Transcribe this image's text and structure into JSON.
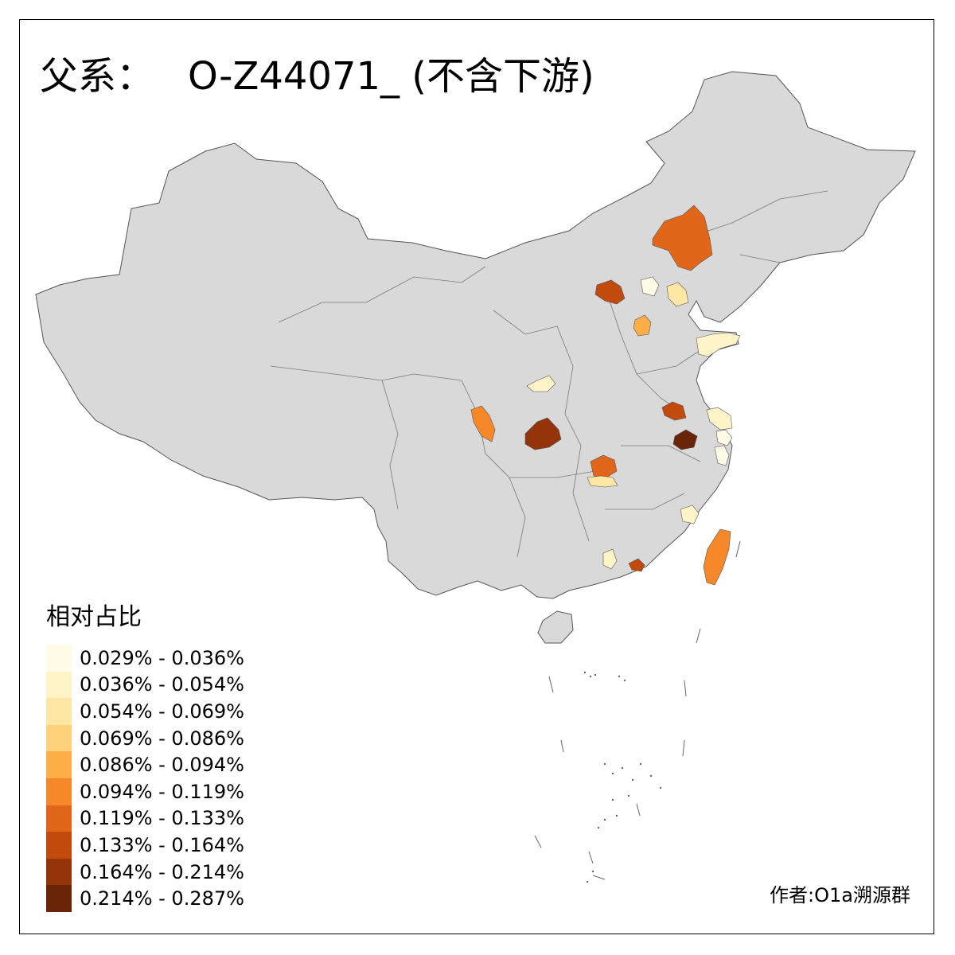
{
  "title": {
    "prefix": "父系：",
    "haplogroup": "O-Z44071_",
    "suffix": "(不含下游)"
  },
  "legend": {
    "title": "相对占比",
    "items": [
      {
        "label": "0.029% - 0.036%",
        "color": "#FFFBE6"
      },
      {
        "label": "0.036% - 0.054%",
        "color": "#FFF3C8"
      },
      {
        "label": "0.054% - 0.069%",
        "color": "#FEE6A4"
      },
      {
        "label": "0.069% - 0.086%",
        "color": "#FED27A"
      },
      {
        "label": "0.086% - 0.094%",
        "color": "#FDAE47"
      },
      {
        "label": "0.094% - 0.119%",
        "color": "#F7882A"
      },
      {
        "label": "0.119% - 0.133%",
        "color": "#E1661A"
      },
      {
        "label": "0.133% - 0.164%",
        "color": "#C24A0C"
      },
      {
        "label": "0.164% - 0.214%",
        "color": "#95330A"
      },
      {
        "label": "0.214% - 0.287%",
        "color": "#6A2408"
      }
    ]
  },
  "colors": {
    "land": "#D9D9D9",
    "border": "#555555",
    "background": "#FFFFFF"
  },
  "credit": "作者:O1a溯源群"
}
